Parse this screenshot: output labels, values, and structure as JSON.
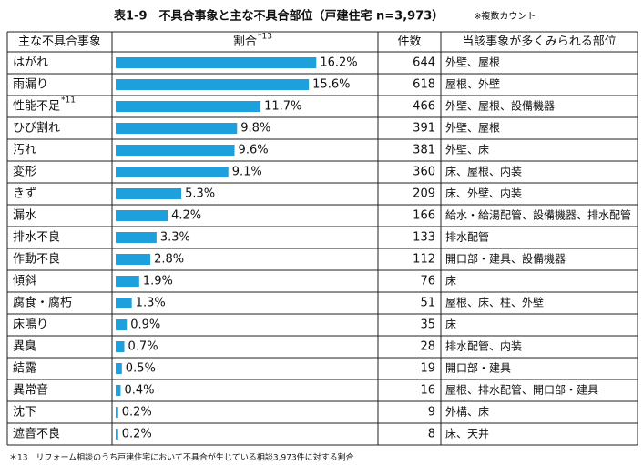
{
  "title": "表1-9　不具合事象と主な不具合部位（戸建住宅 n=3,973）",
  "title_note": "※複数カウント",
  "table": {
    "headers": [
      {
        "text": "主な不具合事象"
      },
      {
        "text": "割合",
        "note": "*13"
      },
      {
        "text": "件数"
      },
      {
        "text": "当該事象が多くみられる部位"
      }
    ],
    "bar_color": "#1ea0dc",
    "rows": [
      {
        "name": "はがれ",
        "share": 16.2,
        "share_label": "16.2%",
        "count": 644,
        "parts": "外壁、屋根"
      },
      {
        "name": "雨漏り",
        "share": 15.6,
        "share_label": "15.6%",
        "count": 618,
        "parts": "屋根、外壁"
      },
      {
        "name": "性能不足",
        "note": "*11",
        "share": 11.7,
        "share_label": "11.7%",
        "count": 466,
        "parts": "外壁、屋根、設備機器"
      },
      {
        "name": "ひび割れ",
        "share": 9.8,
        "share_label": "9.8%",
        "count": 391,
        "parts": "外壁、屋根"
      },
      {
        "name": "汚れ",
        "share": 9.6,
        "share_label": "9.6%",
        "count": 381,
        "parts": "外壁、床"
      },
      {
        "name": "変形",
        "share": 9.1,
        "share_label": "9.1%",
        "count": 360,
        "parts": "床、屋根、内装"
      },
      {
        "name": "きず",
        "share": 5.3,
        "share_label": "5.3%",
        "count": 209,
        "parts": "床、外壁、内装"
      },
      {
        "name": "漏水",
        "share": 4.2,
        "share_label": "4.2%",
        "count": 166,
        "parts": "給水・給湯配管、設備機器、排水配管"
      },
      {
        "name": "排水不良",
        "share": 3.3,
        "share_label": "3.3%",
        "count": 133,
        "parts": "排水配管"
      },
      {
        "name": "作動不良",
        "share": 2.8,
        "share_label": "2.8%",
        "count": 112,
        "parts": "開口部・建具、設備機器"
      },
      {
        "name": "傾斜",
        "share": 1.9,
        "share_label": "1.9%",
        "count": 76,
        "parts": "床"
      },
      {
        "name": "腐食・腐朽",
        "share": 1.3,
        "share_label": "1.3%",
        "count": 51,
        "parts": "屋根、床、柱、外壁"
      },
      {
        "name": "床鳴り",
        "share": 0.9,
        "share_label": "0.9%",
        "count": 35,
        "parts": "床"
      },
      {
        "name": "異臭",
        "share": 0.7,
        "share_label": "0.7%",
        "count": 28,
        "parts": "排水配管、内装"
      },
      {
        "name": "結露",
        "share": 0.5,
        "share_label": "0.5%",
        "count": 19,
        "parts": "開口部・建具"
      },
      {
        "name": "異常音",
        "share": 0.4,
        "share_label": "0.4%",
        "count": 16,
        "parts": "屋根、排水配管、開口部・建具"
      },
      {
        "name": "沈下",
        "share": 0.2,
        "share_label": "0.2%",
        "count": 9,
        "parts": "外構、床"
      },
      {
        "name": "遮音不良",
        "share": 0.2,
        "share_label": "0.2%",
        "count": 8,
        "parts": "床、天井"
      }
    ]
  },
  "footnote": "＊13　リフォーム相談のうち戸建住宅において不具合が生じている相談3,973件に対する割合"
}
